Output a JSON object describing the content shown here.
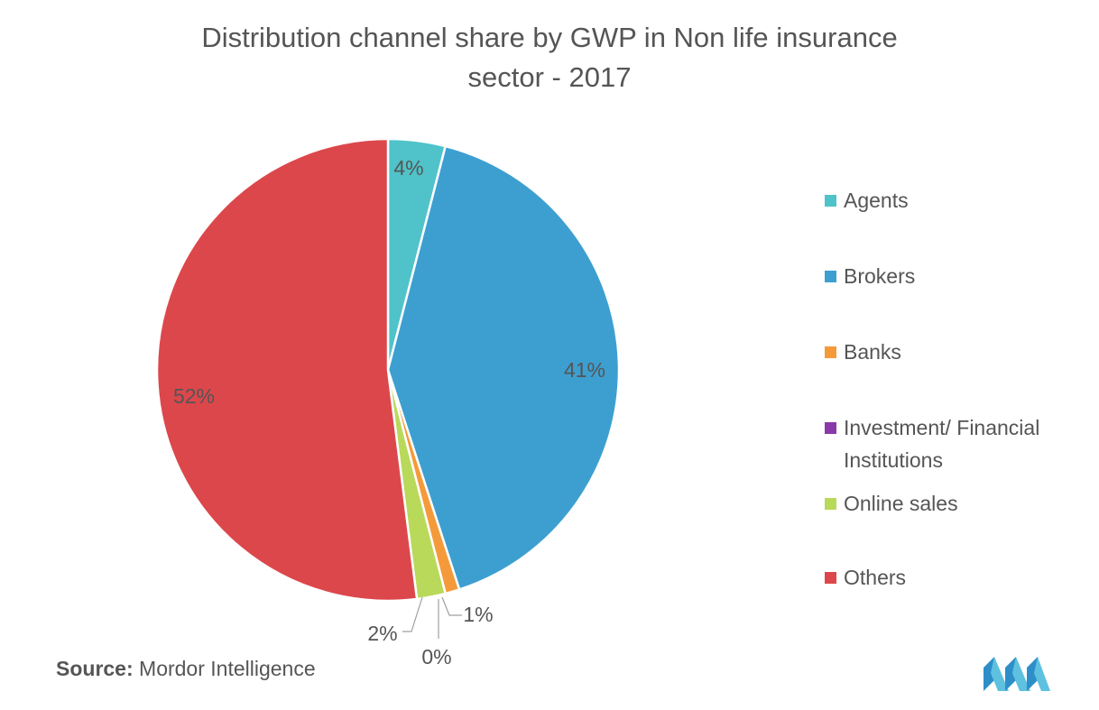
{
  "title_line1": "Distribution channel share by GWP in Non life insurance",
  "title_line2": "sector - 2017",
  "source_label": "Source:",
  "source_text": "Mordor Intelligence",
  "logo_icon": "mordor-intelligence-logo-icon",
  "chart_data": {
    "type": "pie",
    "title": "Distribution channel share by GWP in Non life insurance sector - 2017",
    "legend_position": "right",
    "slices": [
      {
        "name": "Agents",
        "value": 4,
        "label": "4%",
        "color": "#4fc3c9"
      },
      {
        "name": "Brokers",
        "value": 41,
        "label": "41%",
        "color": "#3d9fd0"
      },
      {
        "name": "Banks",
        "value": 1,
        "label": "1%",
        "color": "#f59a3a"
      },
      {
        "name": "Investment/ Financial Institutions",
        "value": 0,
        "label": "0%",
        "color": "#8a3aa8"
      },
      {
        "name": "Online sales",
        "value": 2,
        "label": "2%",
        "color": "#b9d95a"
      },
      {
        "name": "Others",
        "value": 52,
        "label": "52%",
        "color": "#dc474b"
      }
    ]
  }
}
